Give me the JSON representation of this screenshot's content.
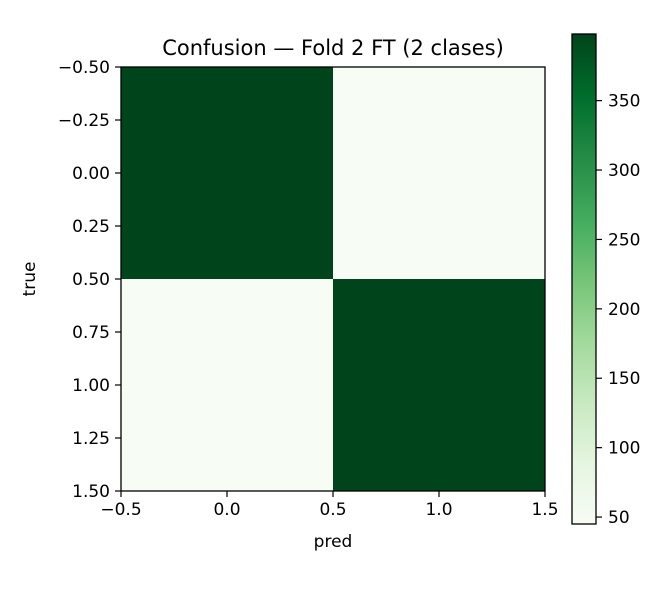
{
  "chart_data": {
    "type": "heatmap",
    "title": "Confusion — Fold 2 FT (2 clases)",
    "xlabel": "pred",
    "ylabel": "true",
    "matrix": [
      [
        398,
        45
      ],
      [
        45,
        398
      ]
    ],
    "xlim": [
      -0.5,
      1.5
    ],
    "ylim": [
      1.5,
      -0.5
    ],
    "xticks": [
      -0.5,
      0.0,
      0.5,
      1.0,
      1.5
    ],
    "xtick_labels": [
      "−0.5",
      "0.0",
      "0.5",
      "1.0",
      "1.5"
    ],
    "yticks": [
      -0.5,
      -0.25,
      0.0,
      0.25,
      0.5,
      0.75,
      1.0,
      1.25,
      1.5
    ],
    "ytick_labels": [
      "−0.50",
      "−0.25",
      "0.00",
      "0.25",
      "0.50",
      "0.75",
      "1.00",
      "1.25",
      "1.50"
    ],
    "colormap": "Greens",
    "color_low": "#f7fcf5",
    "color_high": "#00441b",
    "colorbar": {
      "range": [
        45,
        398
      ],
      "ticks": [
        50,
        100,
        150,
        200,
        250,
        300,
        350
      ],
      "tick_labels": [
        "50",
        "100",
        "150",
        "200",
        "250",
        "300",
        "350"
      ]
    },
    "grid": false,
    "legend": "none"
  }
}
